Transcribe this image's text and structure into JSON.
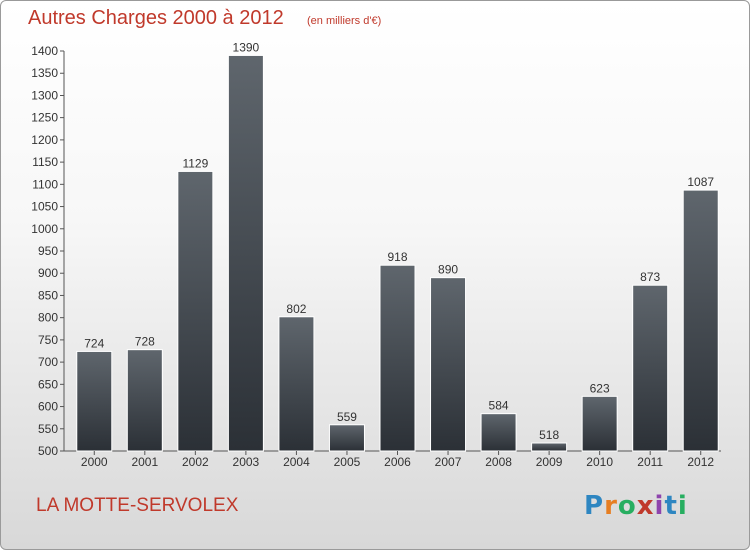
{
  "header": {
    "title": "Autres Charges 2000 à 2012",
    "subtitle": "(en milliers d'€)"
  },
  "footer": {
    "place": "LA MOTTE-SERVOLEX",
    "logo_letters": [
      "P",
      "r",
      "o",
      "x",
      "i",
      "t",
      "i"
    ]
  },
  "colors": {
    "title": "#c0392b",
    "bar_top": "#5f666d",
    "bar_bottom": "#2b3036"
  },
  "chart_data": {
    "type": "bar",
    "title": "Autres Charges 2000 à 2012",
    "subtitle": "(en milliers d'€)",
    "categories": [
      "2000",
      "2001",
      "2002",
      "2003",
      "2004",
      "2005",
      "2006",
      "2007",
      "2008",
      "2009",
      "2010",
      "2011",
      "2012"
    ],
    "values": [
      724,
      728,
      1129,
      1390,
      802,
      559,
      918,
      890,
      584,
      518,
      623,
      873,
      1087
    ],
    "ylim": [
      500,
      1400
    ],
    "yticks": [
      500,
      550,
      600,
      650,
      700,
      750,
      800,
      850,
      900,
      950,
      1000,
      1050,
      1100,
      1150,
      1200,
      1250,
      1300,
      1350,
      1400
    ],
    "xlabel": "",
    "ylabel": "",
    "grid": false,
    "legend": "none"
  }
}
